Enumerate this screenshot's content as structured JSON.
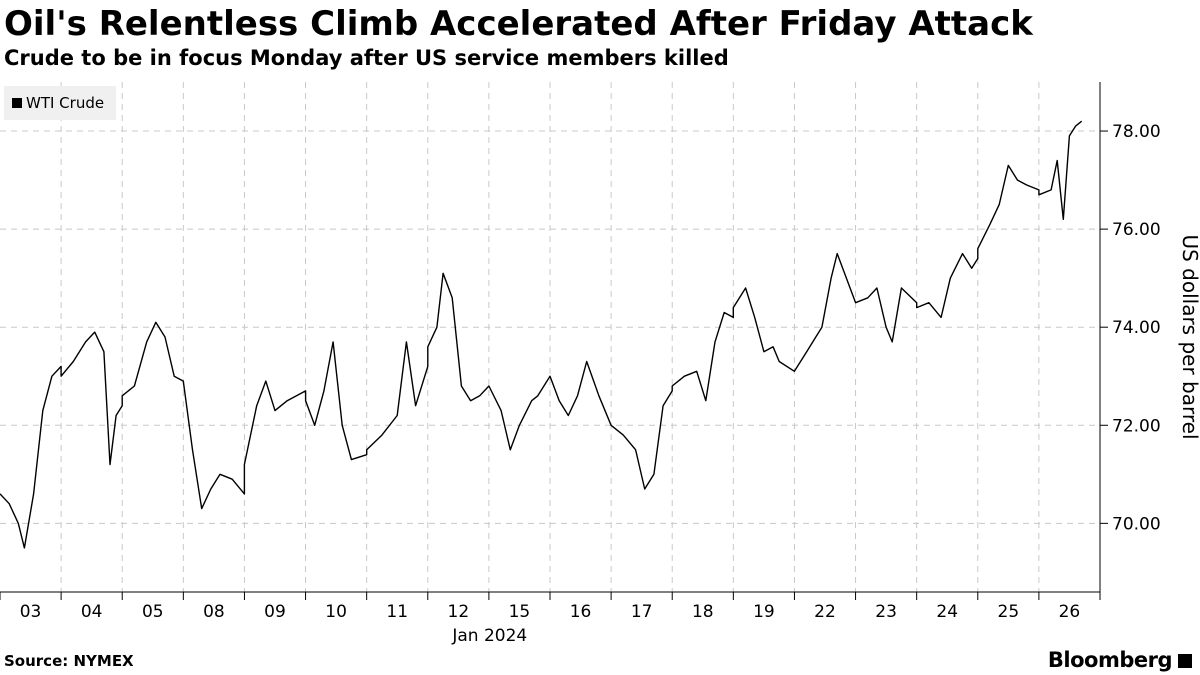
{
  "header": {
    "title": "Oil's Relentless Climb Accelerated After Friday Attack",
    "subtitle": "Crude to be in focus Monday after US service members killed"
  },
  "footer": {
    "source": "Source: NYMEX",
    "brand": "Bloomberg"
  },
  "chart_data": {
    "type": "line",
    "series": [
      {
        "name": "WTI Crude",
        "color": "#000000",
        "points": [
          [
            "03",
            0.0,
            70.6
          ],
          [
            "03",
            0.15,
            70.4
          ],
          [
            "03",
            0.3,
            70.0
          ],
          [
            "03",
            0.4,
            69.5
          ],
          [
            "03",
            0.55,
            70.6
          ],
          [
            "03",
            0.7,
            72.3
          ],
          [
            "03",
            0.85,
            73.0
          ],
          [
            "03",
            1.0,
            73.2
          ],
          [
            "04",
            0.0,
            73.0
          ],
          [
            "04",
            0.2,
            73.3
          ],
          [
            "04",
            0.4,
            73.7
          ],
          [
            "04",
            0.55,
            73.9
          ],
          [
            "04",
            0.7,
            73.5
          ],
          [
            "04",
            0.8,
            71.2
          ],
          [
            "04",
            0.9,
            72.2
          ],
          [
            "04",
            1.0,
            72.4
          ],
          [
            "05",
            0.0,
            72.6
          ],
          [
            "05",
            0.2,
            72.8
          ],
          [
            "05",
            0.4,
            73.7
          ],
          [
            "05",
            0.55,
            74.1
          ],
          [
            "05",
            0.7,
            73.8
          ],
          [
            "05",
            0.85,
            73.0
          ],
          [
            "05",
            1.0,
            72.9
          ],
          [
            "08",
            0.0,
            72.9
          ],
          [
            "08",
            0.15,
            71.5
          ],
          [
            "08",
            0.3,
            70.3
          ],
          [
            "08",
            0.45,
            70.7
          ],
          [
            "08",
            0.6,
            71.0
          ],
          [
            "08",
            0.8,
            70.9
          ],
          [
            "08",
            1.0,
            70.6
          ],
          [
            "09",
            0.0,
            71.2
          ],
          [
            "09",
            0.2,
            72.4
          ],
          [
            "09",
            0.35,
            72.9
          ],
          [
            "09",
            0.5,
            72.3
          ],
          [
            "09",
            0.7,
            72.5
          ],
          [
            "09",
            1.0,
            72.7
          ],
          [
            "10",
            0.0,
            72.5
          ],
          [
            "10",
            0.15,
            72.0
          ],
          [
            "10",
            0.3,
            72.7
          ],
          [
            "10",
            0.45,
            73.7
          ],
          [
            "10",
            0.6,
            72.0
          ],
          [
            "10",
            0.75,
            71.3
          ],
          [
            "10",
            1.0,
            71.4
          ],
          [
            "11",
            0.0,
            71.5
          ],
          [
            "11",
            0.25,
            71.8
          ],
          [
            "11",
            0.5,
            72.2
          ],
          [
            "11",
            0.65,
            73.7
          ],
          [
            "11",
            0.8,
            72.4
          ],
          [
            "11",
            1.0,
            73.2
          ],
          [
            "12",
            0.0,
            73.6
          ],
          [
            "12",
            0.15,
            74.0
          ],
          [
            "12",
            0.25,
            75.1
          ],
          [
            "12",
            0.4,
            74.6
          ],
          [
            "12",
            0.55,
            72.8
          ],
          [
            "12",
            0.7,
            72.5
          ],
          [
            "12",
            0.85,
            72.6
          ],
          [
            "12",
            1.0,
            72.8
          ],
          [
            "15",
            0.0,
            72.8
          ],
          [
            "15",
            0.2,
            72.3
          ],
          [
            "15",
            0.35,
            71.5
          ],
          [
            "15",
            0.5,
            72.0
          ],
          [
            "15",
            0.7,
            72.5
          ],
          [
            "15",
            0.8,
            72.6
          ],
          [
            "16",
            0.0,
            73.0
          ],
          [
            "16",
            0.15,
            72.5
          ],
          [
            "16",
            0.3,
            72.2
          ],
          [
            "16",
            0.45,
            72.6
          ],
          [
            "16",
            0.6,
            73.3
          ],
          [
            "16",
            0.8,
            72.6
          ],
          [
            "16",
            1.0,
            72.0
          ],
          [
            "17",
            0.0,
            72.0
          ],
          [
            "17",
            0.2,
            71.8
          ],
          [
            "17",
            0.4,
            71.5
          ],
          [
            "17",
            0.55,
            70.7
          ],
          [
            "17",
            0.7,
            71.0
          ],
          [
            "17",
            0.85,
            72.4
          ],
          [
            "17",
            1.0,
            72.7
          ],
          [
            "18",
            0.0,
            72.8
          ],
          [
            "18",
            0.2,
            73.0
          ],
          [
            "18",
            0.4,
            73.1
          ],
          [
            "18",
            0.55,
            72.5
          ],
          [
            "18",
            0.7,
            73.7
          ],
          [
            "18",
            0.85,
            74.3
          ],
          [
            "18",
            1.0,
            74.2
          ],
          [
            "19",
            0.0,
            74.4
          ],
          [
            "19",
            0.2,
            74.8
          ],
          [
            "19",
            0.35,
            74.2
          ],
          [
            "19",
            0.5,
            73.5
          ],
          [
            "19",
            0.65,
            73.6
          ],
          [
            "19",
            0.75,
            73.3
          ],
          [
            "22",
            0.0,
            73.1
          ],
          [
            "22",
            0.2,
            73.5
          ],
          [
            "22",
            0.35,
            73.8
          ],
          [
            "22",
            0.45,
            74.0
          ],
          [
            "22",
            0.6,
            75.0
          ],
          [
            "22",
            0.7,
            75.5
          ],
          [
            "23",
            0.0,
            74.5
          ],
          [
            "23",
            0.2,
            74.6
          ],
          [
            "23",
            0.35,
            74.8
          ],
          [
            "23",
            0.5,
            74.0
          ],
          [
            "23",
            0.6,
            73.7
          ],
          [
            "23",
            0.75,
            74.8
          ],
          [
            "23",
            1.0,
            74.5
          ],
          [
            "24",
            0.0,
            74.4
          ],
          [
            "24",
            0.2,
            74.5
          ],
          [
            "24",
            0.4,
            74.2
          ],
          [
            "24",
            0.55,
            75.0
          ],
          [
            "24",
            0.75,
            75.5
          ],
          [
            "24",
            0.9,
            75.2
          ],
          [
            "24",
            1.0,
            75.4
          ],
          [
            "25",
            0.0,
            75.6
          ],
          [
            "25",
            0.2,
            76.1
          ],
          [
            "25",
            0.35,
            76.5
          ],
          [
            "25",
            0.5,
            77.3
          ],
          [
            "25",
            0.65,
            77.0
          ],
          [
            "25",
            0.8,
            76.9
          ],
          [
            "25",
            1.0,
            76.8
          ],
          [
            "26",
            0.0,
            76.7
          ],
          [
            "26",
            0.2,
            76.8
          ],
          [
            "26",
            0.3,
            77.4
          ],
          [
            "26",
            0.4,
            76.2
          ],
          [
            "26",
            0.5,
            77.9
          ],
          [
            "26",
            0.6,
            78.1
          ],
          [
            "26",
            0.7,
            78.2
          ]
        ]
      }
    ],
    "x_categories": [
      "03",
      "04",
      "05",
      "08",
      "09",
      "10",
      "11",
      "12",
      "15",
      "16",
      "17",
      "18",
      "19",
      "22",
      "23",
      "24",
      "25",
      "26"
    ],
    "x_sublabel": "Jan 2024",
    "ylabel": "US dollars per barrel",
    "ylim": [
      68.6,
      79.0
    ],
    "yticks": [
      70.0,
      72.0,
      74.0,
      76.0,
      78.0
    ],
    "ytick_labels": [
      "70.00",
      "72.00",
      "74.00",
      "76.00",
      "78.00"
    ],
    "y_axis_position": "right",
    "grid": "dashed vertical and horizontal",
    "legend_placement": "top-left"
  }
}
